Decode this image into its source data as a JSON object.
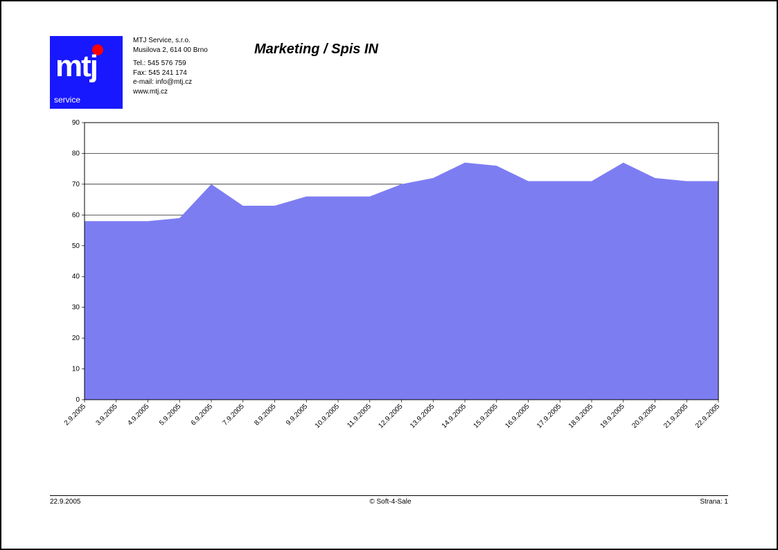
{
  "header": {
    "company_name": "MTJ Service, s.r.o.",
    "address": "Musilova 2, 614 00  Brno",
    "tel": "Tel.: 545 576 759",
    "fax": "Fax: 545 241 174",
    "email": "e-mail: info@mtj.cz",
    "web": "www.mtj.cz",
    "logo_text": "mtj",
    "logo_sub": "service",
    "logo_bg": "#1818ff",
    "logo_dot": "#ff0000"
  },
  "title": "Marketing / Spis IN",
  "chart": {
    "type": "area",
    "fill_color": "#7d7df2",
    "border_color": "#000000",
    "grid_color": "#000000",
    "background_color": "#ffffff",
    "axis_fontsize": 10,
    "ylim": [
      0,
      90
    ],
    "ytick_step": 10,
    "x_labels": [
      "2.9.2005",
      "3.9.2005",
      "4.9.2005",
      "5.9.2005",
      "6.9.2005",
      "7.9.2005",
      "8.9.2005",
      "9.9.2005",
      "10.9.2005",
      "11.9.2005",
      "12.9.2005",
      "13.9.2005",
      "14.9.2005",
      "15.9.2005",
      "16.9.2005",
      "17.9.2005",
      "18.9.2005",
      "19.9.2005",
      "20.9.2005",
      "21.9.2005",
      "22.9.2005"
    ],
    "values": [
      58,
      58,
      58,
      59,
      70,
      63,
      63,
      66,
      66,
      66,
      70,
      72,
      77,
      76,
      71,
      71,
      71,
      77,
      72,
      71,
      71
    ],
    "xlabel_angle": -45
  },
  "footer": {
    "date": "22.9.2005",
    "center": "© Soft-4-Sale",
    "page": "Strana: 1"
  }
}
